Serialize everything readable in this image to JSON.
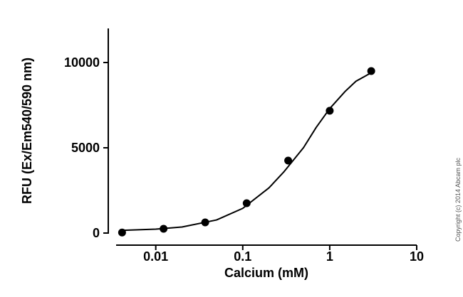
{
  "chart_data": {
    "type": "scatter",
    "xlabel": "Calcium (mM)",
    "ylabel": "RFU (Ex/Em540/590 nm)",
    "copyright": "Copyright (c) 2014 Abcam plc",
    "xscale": "log",
    "xlim": [
      0.0035,
      10
    ],
    "ylim": [
      0,
      12000
    ],
    "xticks": [
      0.01,
      0.1,
      1,
      10
    ],
    "yticks": [
      0,
      5000,
      10000
    ],
    "color": "#000000",
    "series": [
      {
        "mode": "markers",
        "x": [
          0.0041,
          0.0123,
          0.037,
          0.111,
          0.333,
          1,
          3
        ],
        "values": [
          30,
          250,
          625,
          1750,
          4250,
          7170,
          9500
        ]
      },
      {
        "mode": "line",
        "x": [
          0.004,
          0.01,
          0.02,
          0.05,
          0.1,
          0.2,
          0.3,
          0.5,
          0.7,
          1,
          1.5,
          2,
          3
        ],
        "values": [
          158,
          227,
          356,
          768,
          1447,
          2647,
          3613,
          5010,
          6200,
          7300,
          8300,
          8900,
          9400
        ]
      }
    ]
  }
}
